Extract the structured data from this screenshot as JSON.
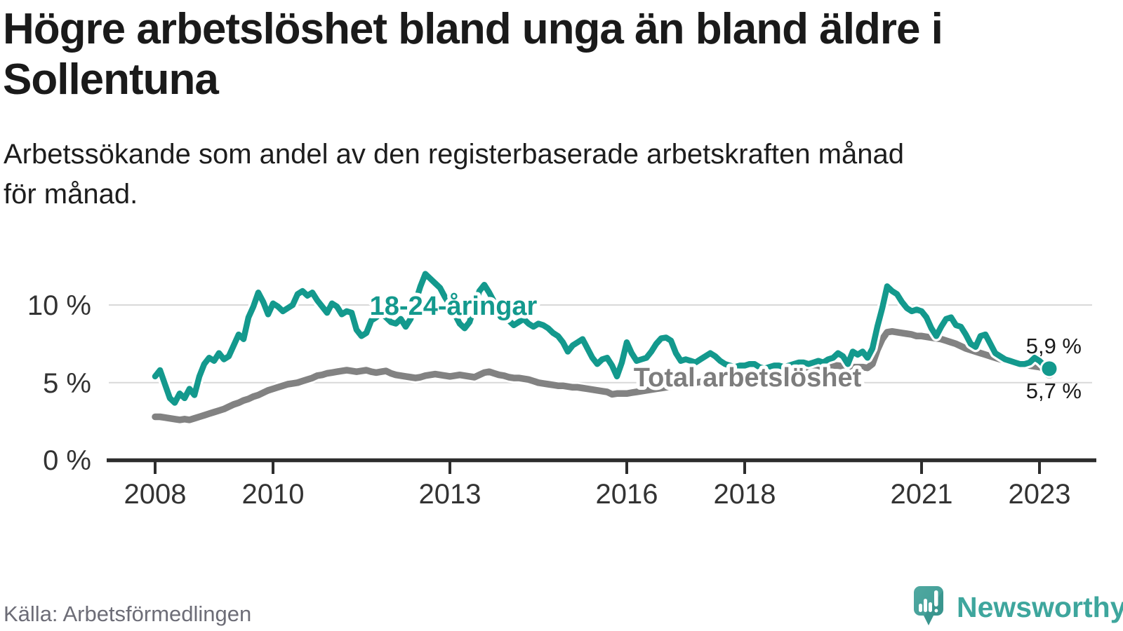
{
  "header": {
    "title_line1": "Högre arbetslöshet bland unga än bland äldre i",
    "title_line2": "Sollentuna",
    "subtitle_line1": "Arbetssökande som andel av den registerbaserade arbetskraften månad",
    "subtitle_line2": "för månad."
  },
  "footer": {
    "source": "Källa: Arbetsförmedlingen",
    "brand": "Newsworthy",
    "brand_icon": "newsworthy-speech-bubble-bar-chart-icon",
    "brand_color": "#3ea69d"
  },
  "chart_data": {
    "type": "line",
    "title": "Högre arbetslöshet bland unga än bland äldre i Sollentuna",
    "subtitle": "Arbetssökande som andel av den registerbaserade arbetskraften månad för månad.",
    "x_unit": "month",
    "x_start": "2008-01",
    "x_end": "2023-03",
    "ylim": [
      0,
      12.5
    ],
    "grid": "horizontal",
    "y_ticks": [
      {
        "value": 10,
        "label": "10 %"
      },
      {
        "value": 5,
        "label": "5 %"
      },
      {
        "value": 0,
        "label": "0 %"
      }
    ],
    "x_ticks": [
      {
        "year": 2008,
        "label": "2008"
      },
      {
        "year": 2010,
        "label": "2010"
      },
      {
        "year": 2013,
        "label": "2013"
      },
      {
        "year": 2016,
        "label": "2016"
      },
      {
        "year": 2018,
        "label": "2018"
      },
      {
        "year": 2021,
        "label": "2021"
      },
      {
        "year": 2023,
        "label": "2023"
      }
    ],
    "series": [
      {
        "name": "18-24-åringar",
        "color": "#13998d",
        "end_label": "5,9 %",
        "end_value": 5.9,
        "values": [
          5.4,
          5.8,
          4.9,
          4.0,
          3.7,
          4.3,
          4.0,
          4.6,
          4.2,
          5.4,
          6.2,
          6.6,
          6.4,
          6.9,
          6.5,
          6.7,
          7.4,
          8.1,
          7.8,
          9.2,
          9.9,
          10.8,
          10.2,
          9.4,
          10.1,
          9.9,
          9.6,
          9.8,
          10.0,
          10.7,
          10.9,
          10.6,
          10.8,
          10.3,
          9.9,
          9.5,
          10.1,
          9.9,
          9.4,
          9.6,
          9.5,
          8.4,
          8.0,
          8.2,
          9.0,
          9.2,
          9.5,
          9.2,
          8.9,
          8.8,
          9.1,
          8.6,
          9.1,
          10.2,
          11.2,
          12.0,
          11.7,
          11.4,
          11.1,
          10.5,
          10.0,
          9.4,
          8.8,
          8.5,
          8.9,
          9.9,
          10.9,
          11.3,
          10.8,
          10.2,
          9.7,
          9.3,
          9.0,
          8.7,
          8.9,
          9.1,
          8.8,
          8.6,
          8.8,
          8.7,
          8.5,
          8.2,
          8.0,
          7.6,
          7.0,
          7.4,
          7.6,
          7.8,
          7.2,
          6.6,
          6.2,
          6.5,
          6.6,
          6.1,
          5.4,
          6.3,
          7.6,
          6.9,
          6.4,
          6.5,
          6.6,
          7.0,
          7.5,
          7.85,
          7.9,
          7.7,
          6.9,
          6.4,
          6.5,
          6.4,
          6.3,
          6.5,
          6.7,
          6.9,
          6.7,
          6.4,
          6.2,
          6.1,
          6.0,
          6.1,
          6.1,
          6.2,
          6.2,
          6.0,
          5.9,
          6.0,
          6.1,
          6.1,
          6.0,
          6.1,
          6.2,
          6.3,
          6.3,
          6.2,
          6.3,
          6.4,
          6.3,
          6.5,
          6.6,
          6.9,
          6.7,
          6.2,
          7.0,
          6.8,
          7.0,
          6.6,
          7.2,
          8.6,
          9.8,
          11.2,
          10.9,
          10.7,
          10.2,
          9.8,
          9.6,
          9.7,
          9.6,
          9.2,
          8.5,
          8.0,
          8.6,
          9.1,
          9.2,
          8.7,
          8.6,
          8.1,
          7.5,
          7.3,
          8.0,
          8.1,
          7.5,
          6.9,
          6.7,
          6.5,
          6.4,
          6.3,
          6.2,
          6.2,
          6.3,
          6.6,
          6.4,
          6.1,
          5.9
        ]
      },
      {
        "name": "Total arbetslöshet",
        "color": "#828282",
        "end_label": "5,7 %",
        "end_value": 5.7,
        "values": [
          2.8,
          2.8,
          2.75,
          2.7,
          2.65,
          2.6,
          2.65,
          2.6,
          2.7,
          2.8,
          2.9,
          3.0,
          3.1,
          3.2,
          3.3,
          3.45,
          3.6,
          3.7,
          3.85,
          3.95,
          4.1,
          4.2,
          4.35,
          4.5,
          4.6,
          4.7,
          4.8,
          4.9,
          4.95,
          5.0,
          5.1,
          5.2,
          5.3,
          5.45,
          5.5,
          5.6,
          5.65,
          5.7,
          5.75,
          5.8,
          5.75,
          5.7,
          5.75,
          5.8,
          5.7,
          5.65,
          5.7,
          5.75,
          5.6,
          5.5,
          5.45,
          5.4,
          5.35,
          5.3,
          5.35,
          5.45,
          5.5,
          5.55,
          5.5,
          5.45,
          5.4,
          5.45,
          5.5,
          5.45,
          5.4,
          5.35,
          5.5,
          5.65,
          5.7,
          5.6,
          5.5,
          5.45,
          5.35,
          5.3,
          5.3,
          5.25,
          5.2,
          5.1,
          5.0,
          4.95,
          4.9,
          4.85,
          4.8,
          4.8,
          4.75,
          4.7,
          4.7,
          4.65,
          4.6,
          4.55,
          4.5,
          4.45,
          4.4,
          4.25,
          4.3,
          4.3,
          4.3,
          4.35,
          4.4,
          4.45,
          4.5,
          4.55,
          4.6,
          4.65,
          4.7,
          4.75,
          4.8,
          4.85,
          4.9,
          4.95,
          5.0,
          5.05,
          5.1,
          5.15,
          5.2,
          5.25,
          5.3,
          5.35,
          5.4,
          5.45,
          5.5,
          5.55,
          5.6,
          5.6,
          5.65,
          5.7,
          5.7,
          5.75,
          5.8,
          5.8,
          5.85,
          5.9,
          5.95,
          6.0,
          6.0,
          6.05,
          6.05,
          6.1,
          6.1,
          6.1,
          6.05,
          6.0,
          6.0,
          6.0,
          6.0,
          5.95,
          6.2,
          7.1,
          7.8,
          8.25,
          8.3,
          8.25,
          8.2,
          8.15,
          8.1,
          8.0,
          8.0,
          7.95,
          7.9,
          7.85,
          7.8,
          7.7,
          7.6,
          7.5,
          7.35,
          7.2,
          7.1,
          7.0,
          6.9,
          6.8,
          6.7,
          6.6,
          6.5,
          6.4,
          6.3,
          6.25,
          6.2,
          6.15,
          6.1,
          6.05,
          6.0,
          5.9,
          5.7
        ]
      }
    ],
    "colors": {
      "grid": "#d9d9d9",
      "axis": "#2d2d2d",
      "axis_text": "#333333",
      "end_label_text": "#1a1a1a"
    },
    "legend_position": "inline-labels"
  }
}
